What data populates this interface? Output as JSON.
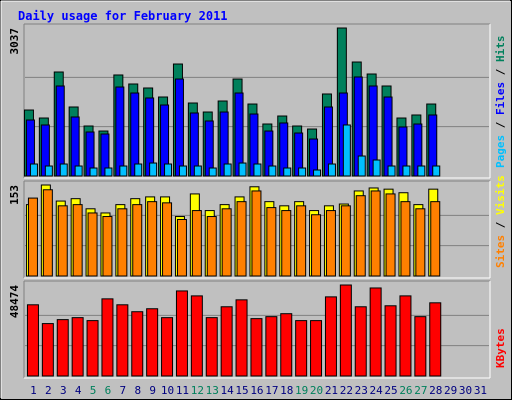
{
  "chart_data": [
    {
      "type": "bar",
      "title": "Daily usage for February 2011",
      "ylim": [
        0,
        3037
      ],
      "yticks": [
        3037
      ],
      "series": [
        {
          "name": "Hits",
          "color": "#00805c",
          "values": [
            1354,
            1190,
            2134,
            1416,
            1026,
            923,
            2073,
            1888,
            1806,
            1621,
            2298,
            1498,
            1313,
            1539,
            1990,
            1477,
            1067,
            1231,
            1026,
            964,
            1683,
            3037,
            2339,
            2093,
            1847,
            1190,
            1252,
            1477,
            null,
            null,
            null
          ]
        },
        {
          "name": "Files",
          "color": "#0000ff",
          "values": [
            1149,
            1047,
            1847,
            1211,
            903,
            862,
            1826,
            1703,
            1601,
            1457,
            1990,
            1293,
            1129,
            1313,
            1703,
            1272,
            923,
            1088,
            882,
            759,
            1416,
            1703,
            2032,
            1847,
            1621,
            1006,
            1067,
            1252,
            null,
            null,
            null
          ]
        },
        {
          "name": "Pages",
          "color": "#00c0ff",
          "values": [
            246,
            205,
            246,
            205,
            164,
            164,
            205,
            246,
            266,
            246,
            205,
            205,
            164,
            246,
            266,
            246,
            205,
            164,
            164,
            123,
            246,
            1047,
            410,
            328,
            205,
            205,
            205,
            205,
            null,
            null,
            null
          ]
        }
      ]
    },
    {
      "type": "bar",
      "ylim": [
        0,
        153
      ],
      "yticks": [
        153
      ],
      "series": [
        {
          "name": "Visits",
          "color": "#ffff00",
          "values": [
            120,
            153,
            126,
            130,
            113,
            106,
            120,
            130,
            133,
            133,
            100,
            138,
            110,
            120,
            133,
            150,
            125,
            118,
            125,
            110,
            118,
            121,
            143,
            148,
            146,
            140,
            120,
            146,
            null,
            null,
            null
          ]
        },
        {
          "name": "Sites",
          "color": "#ff8000",
          "values": [
            131,
            145,
            118,
            120,
            106,
            100,
            113,
            120,
            125,
            123,
            95,
            110,
            100,
            113,
            125,
            143,
            115,
            110,
            118,
            103,
            110,
            118,
            135,
            143,
            138,
            125,
            113,
            125,
            null,
            null,
            null
          ]
        }
      ]
    },
    {
      "type": "bar",
      "ylim": [
        0,
        48474
      ],
      "yticks": [
        48474
      ],
      "categories": [
        "1",
        "2",
        "3",
        "4",
        "5",
        "6",
        "7",
        "8",
        "9",
        "10",
        "11",
        "12",
        "13",
        "14",
        "15",
        "16",
        "17",
        "18",
        "19",
        "20",
        "21",
        "22",
        "23",
        "24",
        "25",
        "26",
        "27",
        "28",
        "29",
        "30",
        "31"
      ],
      "category_colors": [
        "#000080",
        "#000080",
        "#000080",
        "#000080",
        "#00805c",
        "#00805c",
        "#000080",
        "#000080",
        "#000080",
        "#000080",
        "#000080",
        "#00805c",
        "#00805c",
        "#000080",
        "#000080",
        "#000080",
        "#000080",
        "#000080",
        "#00805c",
        "#00805c",
        "#000080",
        "#000080",
        "#000080",
        "#000080",
        "#000080",
        "#00805c",
        "#00805c",
        "#000080",
        "#000080",
        "#000080",
        "#000080"
      ],
      "series": [
        {
          "name": "KBytes",
          "color": "#ff0000",
          "values": [
            37935,
            27924,
            30033,
            31087,
            29506,
            41098,
            37935,
            34246,
            35827,
            31087,
            45313,
            42679,
            31087,
            36881,
            40570,
            30560,
            31614,
            33194,
            29506,
            29506,
            42152,
            48474,
            36881,
            46893,
            37408,
            42679,
            31614,
            38989,
            null,
            null,
            null
          ]
        }
      ]
    }
  ]
}
